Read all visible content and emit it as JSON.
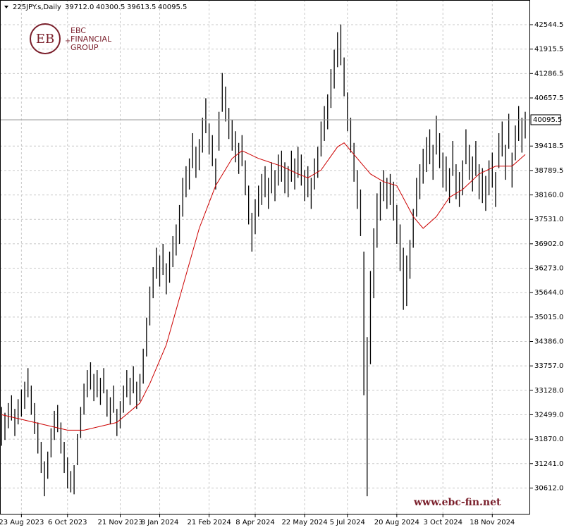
{
  "chart_data": {
    "type": "ohlc",
    "symbol": "225JPY.s,Daily",
    "quote": [
      "39712.0",
      "40300.5",
      "39613.5",
      "40095.5"
    ],
    "logo": {
      "mark": "EB",
      "line1": "EBC",
      "line2": "FINANCIAL",
      "line3": "GROUP"
    },
    "watermark": "www.ebc-fin.net",
    "color": "#000000",
    "grid": true,
    "xlim": [
      -0.5,
      160.5
    ],
    "xticks": [
      {
        "value": 6,
        "label": "23 Aug 2023"
      },
      {
        "value": 20,
        "label": "6 Oct 2023"
      },
      {
        "value": 36,
        "label": "21 Nov 2023"
      },
      {
        "value": 48,
        "label": "8 Jan 2024"
      },
      {
        "value": 63,
        "label": "21 Feb 2024"
      },
      {
        "value": 77,
        "label": "8 Apr 2024"
      },
      {
        "value": 92,
        "label": "22 May 2024"
      },
      {
        "value": 105,
        "label": "5 Jul 2024"
      },
      {
        "value": 120,
        "label": "20 Aug 2024"
      },
      {
        "value": 134,
        "label": "3 Oct 2024"
      },
      {
        "value": 149,
        "label": "18 Nov 2024"
      }
    ],
    "ylim": [
      29930,
      43180
    ],
    "yticks": [
      42544.5,
      41915.5,
      41286.5,
      40657.5,
      39418.5,
      38789.5,
      {
        "value": 38160,
        "label": "38160.0"
      },
      {
        "value": 37531,
        "label": "37531.0"
      },
      {
        "value": 36902,
        "label": "36902.0"
      },
      {
        "value": 36273,
        "label": "36273.0"
      },
      {
        "value": 35644,
        "label": "35644.0"
      },
      {
        "value": 35015,
        "label": "35015.0"
      },
      {
        "value": 34386,
        "label": "34386.0"
      },
      {
        "value": 33757,
        "label": "33757.0"
      },
      {
        "value": 33128,
        "label": "33128.0"
      },
      {
        "value": 32499,
        "label": "32499.0"
      },
      {
        "value": 31870,
        "label": "31870.0"
      },
      {
        "value": 31241,
        "label": "31241.0"
      },
      {
        "value": 30612,
        "label": "30612.0"
      }
    ],
    "last_price": 40095.5,
    "high": [
      32700,
      32550,
      32800,
      33000,
      32650,
      32900,
      33150,
      33350,
      33700,
      33250,
      32800,
      32300,
      31800,
      31300,
      31550,
      32150,
      32600,
      32750,
      32300,
      31800,
      31400,
      31050,
      31200,
      32000,
      32700,
      33300,
      33650,
      33850,
      33550,
      33650,
      33450,
      33700,
      33150,
      32950,
      33250,
      32650,
      32850,
      33250,
      33650,
      33450,
      33750,
      33350,
      33550,
      34200,
      35000,
      35800,
      36300,
      36800,
      36600,
      36900,
      36400,
      36700,
      37100,
      37400,
      37900,
      38600,
      38900,
      39100,
      39750,
      39400,
      39600,
      40150,
      40650,
      40000,
      39700,
      39100,
      40300,
      41300,
      40950,
      40400,
      40100,
      39800,
      39500,
      39700,
      39050,
      38400,
      37700,
      38050,
      38400,
      38700,
      38900,
      38600,
      39000,
      38800,
      39200,
      39300,
      39000,
      38900,
      39300,
      39100,
      39400,
      39200,
      38800,
      38900,
      38600,
      39100,
      39400,
      40050,
      40450,
      40750,
      41400,
      41900,
      42350,
      42550,
      41700,
      40800,
      40150,
      39500,
      38800,
      38300,
      36700,
      34500,
      36200,
      37300,
      38200,
      38500,
      38800,
      38600,
      38700,
      38500,
      37900,
      37400,
      36800,
      36600,
      37000,
      37800,
      38600,
      38950,
      39350,
      39650,
      39850,
      39450,
      40200,
      39750,
      39250,
      39150,
      38850,
      39550,
      38950,
      38750,
      39050,
      39850,
      39450,
      39150,
      39550,
      38950,
      38850,
      38650,
      39050,
      39250,
      38750,
      39750,
      40050,
      39450,
      40250,
      39250,
      39950,
      40450,
      40150,
      40300.5
    ],
    "low": [
      31700,
      31850,
      32150,
      32350,
      31950,
      32250,
      32450,
      32650,
      32950,
      32500,
      32000,
      31500,
      31000,
      30400,
      30850,
      31400,
      31850,
      32050,
      31500,
      31000,
      30600,
      30500,
      30450,
      31200,
      31900,
      32500,
      32950,
      33150,
      32850,
      32950,
      32750,
      33050,
      32450,
      32250,
      32550,
      31950,
      32150,
      32550,
      32950,
      32750,
      33050,
      32650,
      32850,
      33300,
      34000,
      34800,
      35500,
      36000,
      35800,
      36100,
      35600,
      35900,
      36300,
      36600,
      36900,
      37600,
      38100,
      38300,
      38850,
      38600,
      38800,
      39250,
      39750,
      39200,
      38900,
      38300,
      39300,
      40300,
      40050,
      39600,
      39300,
      39000,
      38700,
      38900,
      38150,
      37400,
      36700,
      37150,
      37600,
      37900,
      38100,
      37800,
      38200,
      38000,
      38400,
      38500,
      38200,
      38100,
      38500,
      38300,
      38600,
      38400,
      38000,
      38100,
      37800,
      38300,
      38600,
      39150,
      39550,
      39850,
      40400,
      40900,
      41450,
      41500,
      40700,
      39800,
      39250,
      38500,
      37800,
      37100,
      33000,
      30400,
      33800,
      35500,
      36800,
      37500,
      38000,
      37800,
      37900,
      37500,
      36900,
      36200,
      35200,
      35300,
      36000,
      36800,
      37600,
      38050,
      38450,
      38750,
      38950,
      38550,
      39200,
      38850,
      38350,
      38250,
      37950,
      38650,
      38050,
      37850,
      38150,
      38950,
      38550,
      38250,
      38650,
      38050,
      37950,
      37750,
      38150,
      38350,
      37850,
      38850,
      39150,
      38550,
      39350,
      38350,
      39050,
      39550,
      39250,
      39613.5
    ],
    "ma": {
      "color": "#cc0000",
      "x": [
        0,
        10,
        20,
        25,
        35,
        42,
        45,
        50,
        55,
        60,
        65,
        70,
        73,
        78,
        85,
        90,
        93,
        97,
        102,
        104,
        107,
        112,
        116,
        120,
        125,
        128,
        132,
        136,
        140,
        145,
        150,
        155,
        159
      ],
      "values": [
        32500,
        32300,
        32100,
        32100,
        32300,
        32800,
        33300,
        34300,
        35800,
        37300,
        38400,
        39100,
        39300,
        39100,
        38900,
        38700,
        38600,
        38800,
        39400,
        39500,
        39200,
        38700,
        38500,
        38400,
        37600,
        37300,
        37600,
        38100,
        38300,
        38700,
        38900,
        38900,
        39200
      ]
    }
  }
}
